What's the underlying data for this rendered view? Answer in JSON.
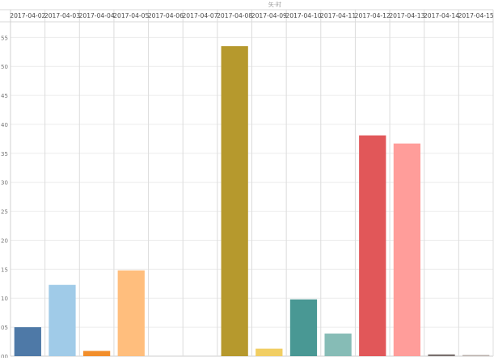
{
  "chart_data": {
    "type": "bar",
    "title": "",
    "top_header": "矢·时",
    "xlabel": "",
    "ylabel": "",
    "categories": [
      "2017-04-02",
      "2017-04-03",
      "2017-04-04",
      "2017-04-05",
      "2017-04-06",
      "2017-04-07",
      "2017-04-08",
      "2017-04-09",
      "2017-04-10",
      "2017-04-11",
      "2017-04-12",
      "2017-04-13",
      "2017-04-14",
      "2017-04-15"
    ],
    "values": [
      5.0,
      12.3,
      0.9,
      14.8,
      0,
      0,
      53.5,
      1.3,
      9.8,
      3.9,
      38.1,
      36.7,
      0.3,
      0.2
    ],
    "colors": [
      "#4e79a7",
      "#a0cbe8",
      "#f28e2b",
      "#ffbe7d",
      "#59a14f",
      "#8cd17d",
      "#b6992d",
      "#f1ce63",
      "#499894",
      "#86bcb6",
      "#e15759",
      "#ff9d9a",
      "#79706e",
      "#bab0ac"
    ],
    "y_ticks": [
      "00",
      "05",
      "10",
      "15",
      "20",
      "25",
      "30",
      "35",
      "40",
      "45",
      "50",
      "55"
    ],
    "ylim": [
      0,
      57.7
    ],
    "grid": true,
    "legend": "none"
  }
}
